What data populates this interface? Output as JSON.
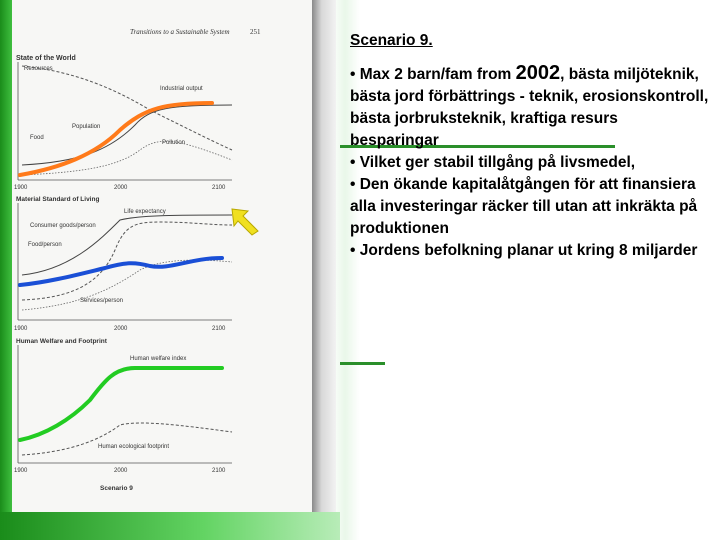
{
  "page_header": {
    "running_head": "Transitions to a Sustainable System",
    "page_number": "251"
  },
  "panels": [
    {
      "title": "State of the World",
      "labels": [
        "Resources",
        "Industrial output",
        "Population",
        "Food",
        "Pollution"
      ],
      "x_ticks": [
        "1900",
        "2000",
        "2100"
      ]
    },
    {
      "title": "Material Standard of Living",
      "labels": [
        "Life expectancy",
        "Consumer goods/person",
        "Food/person",
        "Services/person"
      ],
      "x_ticks": [
        "1900",
        "2000",
        "2100"
      ]
    },
    {
      "title": "Human Welfare and Footprint",
      "labels": [
        "Human welfare index",
        "Human ecological footprint"
      ],
      "x_ticks": [
        "1900",
        "2000",
        "2100"
      ]
    }
  ],
  "figure_caption": "Scenario 9",
  "colors": {
    "orange": "#ff7a1a",
    "blue": "#1a4fd6",
    "green": "#22cc22",
    "arrow": "#f0e020"
  },
  "slide": {
    "title": "Scenario 9.",
    "bullet1_prefix": "• Max 2 barn/fam from ",
    "bullet1_year": "2002",
    "bullet1_suffix": ", bästa miljöteknik,  bästa jord förbättrings - teknik, erosionskontroll, bästa jorbruksteknik, kraftiga resurs besparingar",
    "bullet2": "• Vilket ger stabil tillgång på livsmedel,",
    "bullet3": "• Den ökande kapitalåtgången för att finansiera alla investeringar räcker till utan att inkräkta på produktionen",
    "bullet4": "• Jordens befolkning planar ut kring 8 miljarder"
  }
}
